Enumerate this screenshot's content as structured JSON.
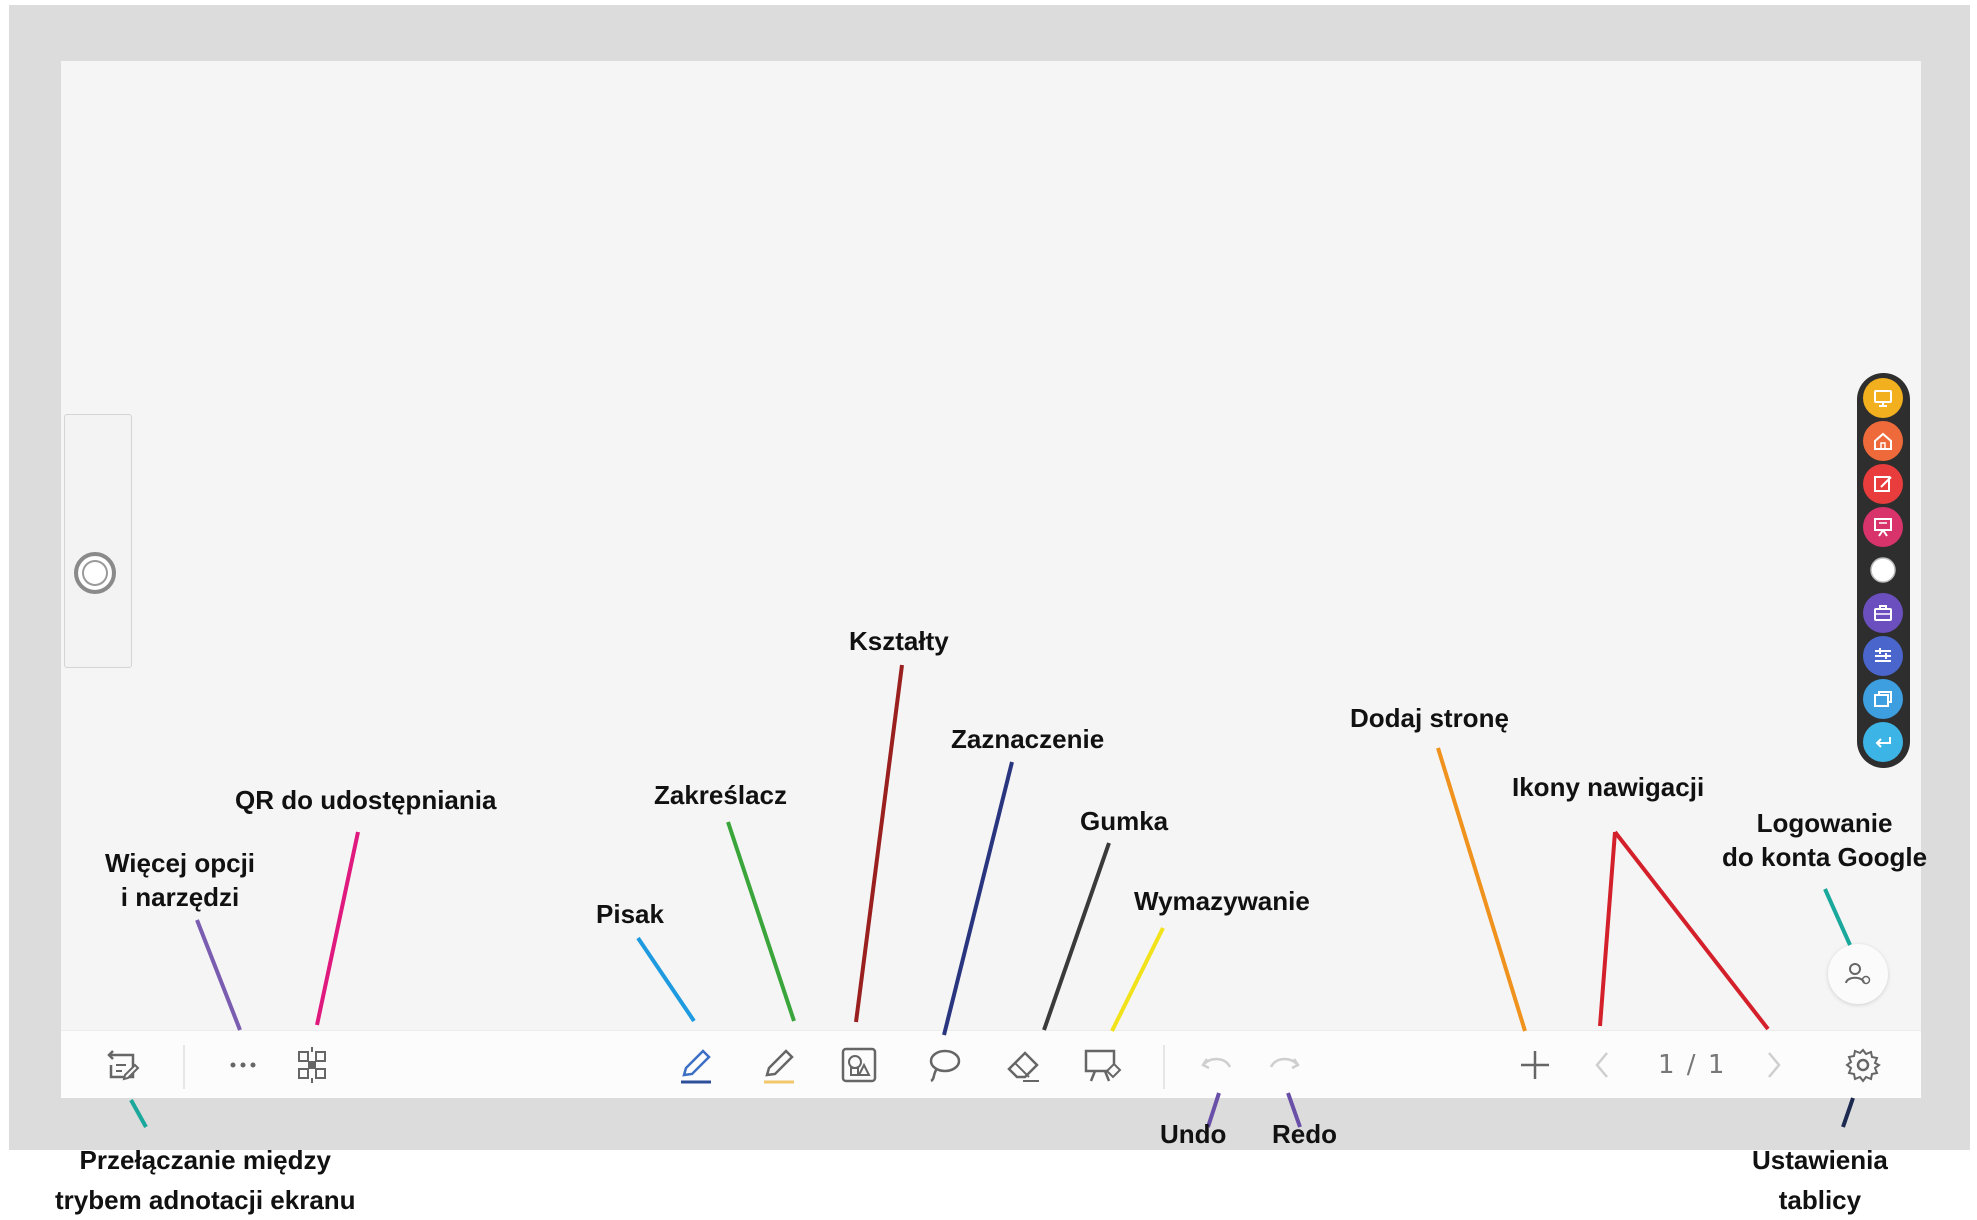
{
  "board": {
    "page_indicator": "1 / 1",
    "right_dock": {
      "items": [
        {
          "icon": "screen-icon",
          "color": "#f2b01e"
        },
        {
          "icon": "home-icon",
          "color": "#ef6a3a"
        },
        {
          "icon": "edit-icon",
          "color": "#e93c3c"
        },
        {
          "icon": "presentation-icon",
          "color": "#d8336a"
        },
        {
          "icon": "circle-icon",
          "color": "#ffffff"
        },
        {
          "icon": "toolbox-icon",
          "color": "#6b4fbf"
        },
        {
          "icon": "sliders-icon",
          "color": "#4a66cc"
        },
        {
          "icon": "window-icon",
          "color": "#3d9ee0"
        },
        {
          "icon": "return-icon",
          "color": "#3db4e6"
        }
      ]
    }
  },
  "toolbar": {
    "icons": [
      "annotation-toggle-icon",
      "more-icon",
      "qr-share-icon",
      "pen-icon",
      "highlighter-icon",
      "shapes-icon",
      "lasso-icon",
      "eraser-icon",
      "clear-icon",
      "undo-icon",
      "redo-icon",
      "add-page-icon",
      "prev-page-icon",
      "next-page-icon",
      "settings-icon"
    ]
  },
  "labels": {
    "toggle": "Przełączanie między\ntrybem adnotacji ekranu",
    "more": "Więcej opcji\ni narzędzi",
    "qr": "QR do udostępniania",
    "pen": "Pisak",
    "highlighter": "Zakreślacz",
    "shapes": "Kształty",
    "selection": "Zaznaczenie",
    "eraser": "Gumka",
    "clear": "Wymazywanie",
    "undo": "Undo",
    "redo": "Redo",
    "add_page": "Dodaj stronę",
    "nav": "Ikony nawigacji",
    "login": "Logowanie\ndo konta Google",
    "settings": "Ustawienia\ntablicy"
  },
  "leader_colors": {
    "toggle": "#1aa89c",
    "more": "#7a5cb0",
    "qr": "#e0197f",
    "pen": "#1e9be0",
    "highlighter": "#3aa53a",
    "shapes": "#9a2020",
    "selection": "#2a3580",
    "eraser": "#3a3a3a",
    "clear": "#f2e21a",
    "undo": "#6a4fa8",
    "redo": "#6a4fa8",
    "add_page": "#f0921e",
    "nav": "#d4202a",
    "login": "#1aa89c",
    "settings": "#1c2a50"
  }
}
